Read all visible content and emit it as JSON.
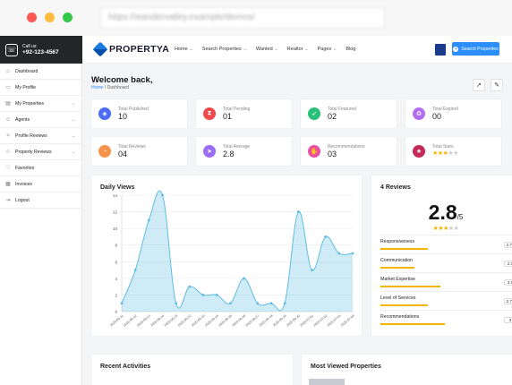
{
  "browser": {
    "url": "https://wandervalley.example/demos/"
  },
  "header": {
    "call_label": "Call us:",
    "phone": "+92-123-4567",
    "brand": "PROPERTYA",
    "menu": [
      "Home",
      "Search Properties",
      "Wanted",
      "Realtor",
      "Pages",
      "Blog"
    ],
    "menu_dropdown": [
      true,
      true,
      true,
      true,
      true,
      false
    ],
    "cta": "Search Properties"
  },
  "sidebar": {
    "items": [
      {
        "label": "Dashboard",
        "icon": "dashboard-icon",
        "has_submenu": false
      },
      {
        "label": "My Profile",
        "icon": "profile-icon",
        "has_submenu": false
      },
      {
        "label": "My Properties",
        "icon": "properties-icon",
        "has_submenu": true
      },
      {
        "label": "Agents",
        "icon": "agents-icon",
        "has_submenu": true
      },
      {
        "label": "Profile Reviews",
        "icon": "reviews-icon",
        "has_submenu": true
      },
      {
        "label": "Property Reviews",
        "icon": "property-reviews-icon",
        "has_submenu": true
      },
      {
        "label": "Favorites",
        "icon": "heart-icon",
        "has_submenu": false
      },
      {
        "label": "Invoices",
        "icon": "invoice-icon",
        "has_submenu": false
      },
      {
        "label": "Logout",
        "icon": "logout-icon",
        "has_submenu": false
      }
    ]
  },
  "page": {
    "welcome": "Welcome back,",
    "breadcrumb_home": "Home",
    "breadcrumb_sep": "/",
    "breadcrumb_current": "Dashboard"
  },
  "stats": [
    {
      "label": "Total Published",
      "value": "10",
      "color": "#4b6cf3",
      "icon": "layers-icon"
    },
    {
      "label": "Total Pending",
      "value": "01",
      "color": "#ef4a4a",
      "icon": "hourglass-icon"
    },
    {
      "label": "Total Featured",
      "value": "02",
      "color": "#29c079",
      "icon": "rocket-icon"
    },
    {
      "label": "Total Expired",
      "value": "00",
      "color": "#b36ef0",
      "icon": "recycle-icon"
    },
    {
      "label": "Total Reviews",
      "value": "04",
      "color": "#f7934c",
      "icon": "bell-icon"
    },
    {
      "label": "Total Average",
      "value": "2.8",
      "color": "#9b6df2",
      "icon": "send-icon"
    },
    {
      "label": "Recommendations",
      "value": "03",
      "color": "#e9509f",
      "icon": "thumbs-up-icon"
    },
    {
      "label": "Total Stars",
      "value": "",
      "stars": 3,
      "color": "#c4295a",
      "icon": "star-icon"
    }
  ],
  "chart": {
    "title": "Daily Views"
  },
  "chart_data": {
    "type": "area",
    "title": "Daily Views",
    "xlabel": "",
    "ylabel": "",
    "ylim": [
      0,
      14
    ],
    "yticks": [
      0,
      2,
      4,
      6,
      8,
      10,
      12,
      14
    ],
    "grid": true,
    "color": "#5fbde2",
    "x": [
      "2020-06-11",
      "2020-06-12",
      "2020-06-13",
      "2020-06-14",
      "2020-06-15",
      "2020-06-22",
      "2020-06-23",
      "2020-06-24",
      "2020-06-25",
      "2020-06-26",
      "2020-06-27",
      "2020-06-28",
      "2020-06-29",
      "2020-06-30",
      "2020-07-01",
      "2020-07-02",
      "2020-07-03",
      "2020-07-04"
    ],
    "x_tick_labels": [
      "2020-06-11",
      "2020-06-12",
      "2020-06-13",
      "2020-06-14",
      "2020-06-15",
      "2020-06-22",
      "2020-06-23",
      "2020-06-24",
      "2020-06-25",
      "2020-06-26",
      "2020-06-27",
      "2020-06-28",
      "2020-06-29",
      "2020-06-30",
      "2020-07-01",
      "2020-07-02",
      "2020-07-03",
      "2020-07-04"
    ],
    "values": [
      1,
      5,
      11,
      14,
      1,
      3,
      2,
      2,
      1,
      4,
      1,
      1,
      1,
      12,
      5,
      9,
      7,
      7
    ]
  },
  "reviews": {
    "title": "4 Reviews",
    "average": "2.8",
    "out_of": "/5",
    "stars": 3,
    "rows": [
      {
        "label": "Responsiveness",
        "value": "2.75",
        "fraction": 0.55
      },
      {
        "label": "Communication",
        "value": "2.0",
        "fraction": 0.4
      },
      {
        "label": "Market Expertise",
        "value": "3.5",
        "fraction": 0.7
      },
      {
        "label": "Level of Services",
        "value": "2.75",
        "fraction": 0.55
      },
      {
        "label": "Recommendations",
        "value": "3",
        "fraction": 0.75
      }
    ]
  },
  "recent": {
    "title": "Recent Activities"
  },
  "most_viewed": {
    "title": "Most Viewed Properties"
  }
}
